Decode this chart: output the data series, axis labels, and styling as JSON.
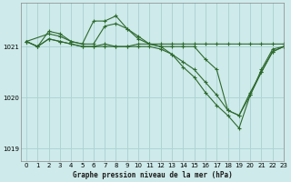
{
  "title": "Graphe pression niveau de la mer (hPa)",
  "background_color": "#ceeaea",
  "grid_color": "#aed4d4",
  "line_color": "#2d6a2d",
  "xlim": [
    -0.5,
    23
  ],
  "ylim": [
    1018.75,
    1021.85
  ],
  "yticks": [
    1019,
    1020,
    1021
  ],
  "xticks": [
    0,
    1,
    2,
    3,
    4,
    5,
    6,
    7,
    8,
    9,
    10,
    11,
    12,
    13,
    14,
    15,
    16,
    17,
    18,
    19,
    20,
    21,
    22,
    23
  ],
  "series": [
    {
      "x": [
        0,
        1,
        2,
        3,
        4,
        5,
        6,
        7,
        8,
        9,
        10,
        11,
        12,
        13,
        14,
        15,
        16,
        17,
        18,
        19,
        20,
        21,
        22,
        23
      ],
      "y": [
        1021.1,
        1021.0,
        1021.15,
        1021.1,
        1021.05,
        1021.0,
        1021.0,
        1021.05,
        1021.0,
        1021.0,
        1021.05,
        1021.05,
        1021.05,
        1021.05,
        1021.05,
        1021.05,
        1021.05,
        1021.05,
        1021.05,
        1021.05,
        1021.05,
        1021.05,
        1021.05,
        1021.05
      ]
    },
    {
      "x": [
        0,
        1,
        2,
        3,
        4,
        5,
        6,
        7,
        8,
        9,
        10,
        11,
        12,
        13,
        14,
        15,
        16,
        17,
        18,
        19,
        20,
        21,
        22,
        23
      ],
      "y": [
        1021.1,
        1021.0,
        1021.3,
        1021.25,
        1021.1,
        1021.05,
        1021.5,
        1021.5,
        1021.6,
        1021.35,
        1021.15,
        1021.05,
        1021.0,
        1020.85,
        1020.6,
        1020.4,
        1020.1,
        1019.85,
        1019.65,
        1019.4,
        1020.05,
        1020.55,
        1020.95,
        1021.0
      ]
    },
    {
      "x": [
        0,
        2,
        3,
        4,
        5,
        6,
        7,
        8,
        9,
        10,
        11,
        12,
        13,
        14,
        15,
        16,
        17,
        18,
        19,
        20,
        21,
        22,
        23
      ],
      "y": [
        1021.1,
        1021.25,
        1021.2,
        1021.1,
        1021.05,
        1021.05,
        1021.4,
        1021.45,
        1021.35,
        1021.2,
        1021.05,
        1021.0,
        1021.0,
        1021.0,
        1021.0,
        1020.75,
        1020.55,
        1019.75,
        1019.65,
        1020.1,
        1020.5,
        1020.9,
        1021.0
      ]
    },
    {
      "x": [
        0,
        1,
        2,
        3,
        4,
        5,
        6,
        7,
        8,
        9,
        10,
        11,
        12,
        13,
        14,
        15,
        16,
        17,
        18,
        19,
        20,
        21,
        22,
        23
      ],
      "y": [
        1021.1,
        1021.0,
        1021.15,
        1021.1,
        1021.05,
        1021.0,
        1021.0,
        1021.0,
        1021.0,
        1021.0,
        1021.0,
        1021.0,
        1020.95,
        1020.85,
        1020.7,
        1020.55,
        1020.3,
        1020.05,
        1019.75,
        1019.65,
        1020.05,
        1020.5,
        1020.9,
        1021.0
      ]
    }
  ]
}
